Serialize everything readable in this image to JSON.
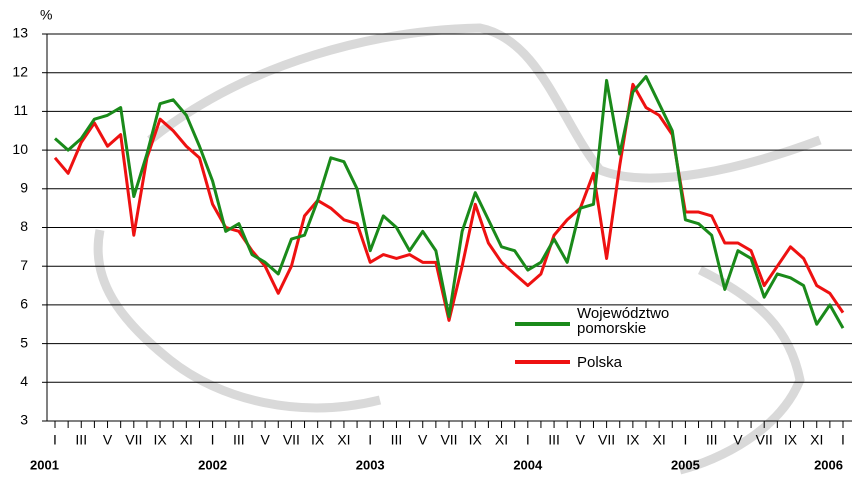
{
  "chart_data": {
    "type": "line",
    "y_label": "%",
    "categories": [
      "I",
      null,
      "III",
      null,
      "V",
      null,
      "VII",
      null,
      "IX",
      null,
      "XI",
      null,
      "I",
      null,
      "III",
      null,
      "V",
      null,
      "VII",
      null,
      "IX",
      null,
      "XI",
      null,
      "I",
      null,
      "III",
      null,
      "V",
      null,
      "VII",
      null,
      "IX",
      null,
      "XI",
      null,
      "I",
      null,
      "III",
      null,
      "V",
      null,
      "VII",
      null,
      "IX",
      null,
      "XI",
      null,
      "I",
      null,
      "III",
      null,
      "V",
      null,
      "VII",
      null,
      "IX",
      null,
      "XI",
      null,
      "I"
    ],
    "years": [
      "2001",
      "2002",
      "2003",
      "2004",
      "2005",
      "2006"
    ],
    "ylim": [
      3,
      13
    ],
    "yticks": [
      3,
      4,
      5,
      6,
      7,
      8,
      9,
      10,
      11,
      12,
      13
    ],
    "grid": true,
    "series": [
      {
        "name": "Województwo pomorskie",
        "color": "#1a8a1a",
        "values": [
          10.3,
          10.0,
          10.3,
          10.8,
          10.9,
          11.1,
          8.8,
          9.9,
          11.2,
          11.3,
          10.9,
          10.1,
          9.2,
          7.9,
          8.1,
          7.3,
          7.1,
          6.8,
          7.7,
          7.8,
          8.7,
          9.8,
          9.7,
          9.0,
          7.4,
          8.3,
          8.0,
          7.4,
          7.9,
          7.4,
          5.7,
          7.9,
          8.9,
          8.2,
          7.5,
          7.4,
          6.9,
          7.1,
          7.7,
          7.1,
          8.5,
          8.6,
          11.8,
          9.9,
          11.5,
          11.9,
          11.2,
          10.5,
          8.2,
          8.1,
          7.8,
          6.4,
          7.4,
          7.2,
          6.2,
          6.8,
          6.7,
          6.5,
          5.5,
          6.0,
          5.4
        ]
      },
      {
        "name": "Polska",
        "color": "#ee1111",
        "values": [
          9.8,
          9.4,
          10.2,
          10.7,
          10.1,
          10.4,
          7.8,
          9.8,
          10.8,
          10.5,
          10.1,
          9.8,
          8.6,
          8.0,
          7.9,
          7.4,
          7.0,
          6.3,
          7.0,
          8.3,
          8.7,
          8.5,
          8.2,
          8.1,
          7.1,
          7.3,
          7.2,
          7.3,
          7.1,
          7.1,
          5.6,
          7.0,
          8.6,
          7.6,
          7.1,
          6.8,
          6.5,
          6.8,
          7.8,
          8.2,
          8.5,
          9.4,
          7.2,
          9.6,
          11.7,
          11.1,
          10.9,
          10.4,
          8.4,
          8.4,
          8.3,
          7.6,
          7.6,
          7.4,
          6.5,
          7.0,
          7.5,
          7.2,
          6.5,
          6.3,
          5.8
        ]
      }
    ]
  }
}
